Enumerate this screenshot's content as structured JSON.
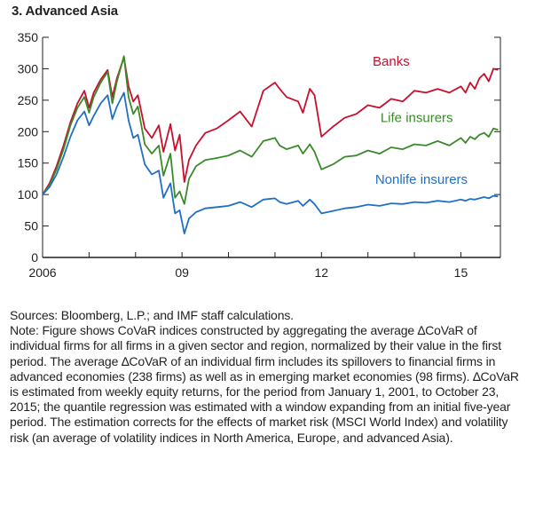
{
  "chart_data": {
    "type": "line",
    "title": "3. Advanced Asia",
    "xlabel": "",
    "ylabel": "",
    "x_tick_labels": [
      "2006",
      "09",
      "12",
      "15"
    ],
    "x_tick_years": [
      2006,
      2009,
      2012,
      2015
    ],
    "xlim": [
      2006.0,
      2015.85
    ],
    "ylim": [
      0,
      350
    ],
    "y_ticks": [
      0,
      50,
      100,
      150,
      200,
      250,
      300,
      350
    ],
    "y_tick_labels": [
      "0",
      "50",
      "100",
      "150",
      "200",
      "250",
      "300",
      "350"
    ],
    "grid": false,
    "legend": "inline labels next to series",
    "series": [
      {
        "name": "Banks",
        "color": "#c8102e",
        "x": [
          2006.0,
          2006.15,
          2006.3,
          2006.45,
          2006.6,
          2006.75,
          2006.9,
          2007.0,
          2007.1,
          2007.25,
          2007.4,
          2007.5,
          2007.6,
          2007.75,
          2007.85,
          2007.95,
          2008.05,
          2008.2,
          2008.35,
          2008.5,
          2008.6,
          2008.75,
          2008.85,
          2008.95,
          2009.05,
          2009.15,
          2009.3,
          2009.5,
          2009.75,
          2010.0,
          2010.25,
          2010.5,
          2010.75,
          2011.0,
          2011.1,
          2011.25,
          2011.5,
          2011.6,
          2011.75,
          2011.85,
          2012.0,
          2012.25,
          2012.5,
          2012.75,
          2013.0,
          2013.25,
          2013.5,
          2013.75,
          2014.0,
          2014.25,
          2014.5,
          2014.75,
          2015.0,
          2015.1,
          2015.2,
          2015.3,
          2015.4,
          2015.5,
          2015.6,
          2015.7,
          2015.8
        ],
        "values": [
          100,
          118,
          145,
          178,
          215,
          245,
          265,
          238,
          262,
          283,
          298,
          255,
          285,
          318,
          272,
          248,
          258,
          205,
          190,
          210,
          168,
          212,
          170,
          195,
          120,
          155,
          178,
          198,
          205,
          218,
          232,
          208,
          265,
          278,
          268,
          255,
          248,
          230,
          268,
          258,
          192,
          208,
          222,
          228,
          242,
          238,
          252,
          248,
          265,
          262,
          268,
          262,
          272,
          262,
          278,
          268,
          285,
          292,
          280,
          300,
          298
        ]
      },
      {
        "name": "Life insurers",
        "color": "#3a8a2a",
        "x": [
          2006.0,
          2006.15,
          2006.3,
          2006.45,
          2006.6,
          2006.75,
          2006.9,
          2007.0,
          2007.1,
          2007.25,
          2007.4,
          2007.5,
          2007.6,
          2007.75,
          2007.85,
          2007.95,
          2008.05,
          2008.2,
          2008.35,
          2008.5,
          2008.6,
          2008.75,
          2008.85,
          2008.95,
          2009.05,
          2009.15,
          2009.3,
          2009.5,
          2009.75,
          2010.0,
          2010.25,
          2010.5,
          2010.75,
          2011.0,
          2011.1,
          2011.25,
          2011.5,
          2011.6,
          2011.75,
          2011.85,
          2012.0,
          2012.25,
          2012.5,
          2012.75,
          2013.0,
          2013.25,
          2013.5,
          2013.75,
          2014.0,
          2014.25,
          2014.5,
          2014.75,
          2015.0,
          2015.1,
          2015.2,
          2015.3,
          2015.4,
          2015.5,
          2015.6,
          2015.7,
          2015.8
        ],
        "values": [
          100,
          115,
          140,
          172,
          210,
          238,
          255,
          230,
          255,
          278,
          295,
          245,
          280,
          320,
          255,
          228,
          240,
          180,
          165,
          178,
          130,
          165,
          95,
          105,
          85,
          125,
          145,
          155,
          158,
          162,
          170,
          160,
          185,
          190,
          178,
          172,
          178,
          165,
          180,
          168,
          140,
          148,
          160,
          162,
          170,
          165,
          175,
          172,
          180,
          178,
          185,
          178,
          190,
          182,
          192,
          188,
          195,
          198,
          192,
          205,
          203
        ]
      },
      {
        "name": "Nonlife insurers",
        "color": "#1f6fc6",
        "x": [
          2006.0,
          2006.15,
          2006.3,
          2006.45,
          2006.6,
          2006.75,
          2006.9,
          2007.0,
          2007.1,
          2007.25,
          2007.4,
          2007.5,
          2007.6,
          2007.75,
          2007.85,
          2007.95,
          2008.05,
          2008.2,
          2008.35,
          2008.5,
          2008.6,
          2008.75,
          2008.85,
          2008.95,
          2009.05,
          2009.15,
          2009.3,
          2009.5,
          2009.75,
          2010.0,
          2010.25,
          2010.5,
          2010.75,
          2011.0,
          2011.1,
          2011.25,
          2011.5,
          2011.6,
          2011.75,
          2011.85,
          2012.0,
          2012.25,
          2012.5,
          2012.75,
          2013.0,
          2013.25,
          2013.5,
          2013.75,
          2014.0,
          2014.25,
          2014.5,
          2014.75,
          2015.0,
          2015.1,
          2015.2,
          2015.3,
          2015.4,
          2015.5,
          2015.6,
          2015.7,
          2015.8
        ],
        "values": [
          100,
          112,
          132,
          160,
          192,
          218,
          232,
          210,
          225,
          245,
          258,
          220,
          240,
          262,
          218,
          190,
          195,
          148,
          132,
          138,
          95,
          118,
          70,
          75,
          38,
          62,
          72,
          78,
          80,
          82,
          88,
          80,
          92,
          94,
          88,
          85,
          90,
          82,
          92,
          85,
          70,
          74,
          78,
          80,
          84,
          82,
          86,
          85,
          88,
          87,
          90,
          88,
          92,
          90,
          93,
          92,
          94,
          96,
          94,
          98,
          97
        ]
      }
    ],
    "annotations": [
      "Banks",
      "Life insurers",
      "Nonlife insurers"
    ]
  },
  "notes": {
    "sources": "Sources: Bloomberg, L.P.; and IMF staff calculations.",
    "note": "Note: Figure shows CoVaR indices constructed by aggregating the average ∆CoVaR of individual firms for all firms in a given sector and region, normalized by their value in the first period. The average ∆CoVaR of an individual firm includes its spillovers to financial firms in advanced economies (238 firms) as well as in emerging market economies (98 firms). ∆CoVaR is estimated from weekly equity returns, for the period from January 1, 2001, to October 23, 2015; the quantile regression was estimated with a window expanding from an initial five-year period. The estimation corrects for the effects of market risk (MSCI World Index) and volatility risk (an average of volatility indices in North America, Europe, and advanced Asia)."
  }
}
